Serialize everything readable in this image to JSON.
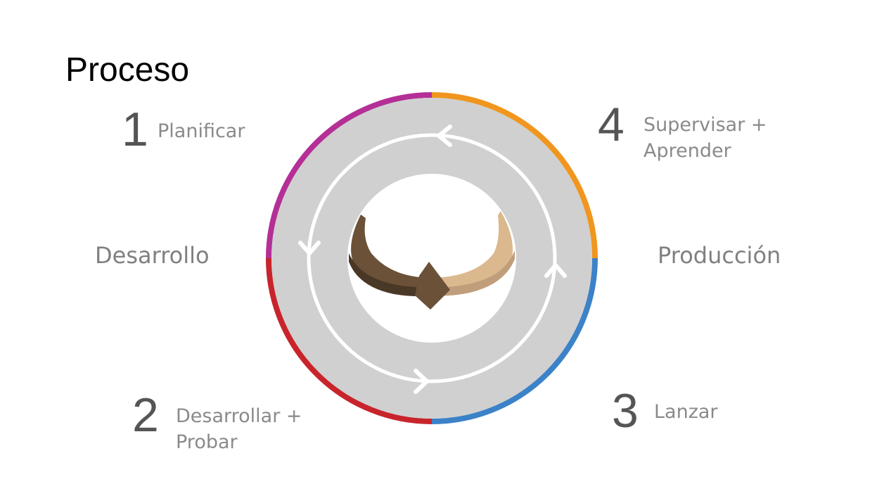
{
  "title": "Proceso",
  "steps": [
    {
      "number": "1",
      "label": "Planificar"
    },
    {
      "number": "2",
      "label_line1": "Desarrollar +",
      "label_line2": "Probar"
    },
    {
      "number": "3",
      "label": "Lanzar"
    },
    {
      "number": "4",
      "label_line1": "Supervisar +",
      "label_line2": "Aprender"
    }
  ],
  "sides": {
    "left": "Desarrollo",
    "right": "Producción"
  },
  "colors": {
    "planificar": "#b42f96",
    "desarrollar": "#c8242c",
    "lanzar": "#3c82c8",
    "supervisar": "#f0961e",
    "track": "#d0d0d0",
    "dark_loop": "#6b5138",
    "light_loop": "#dcb88e"
  }
}
